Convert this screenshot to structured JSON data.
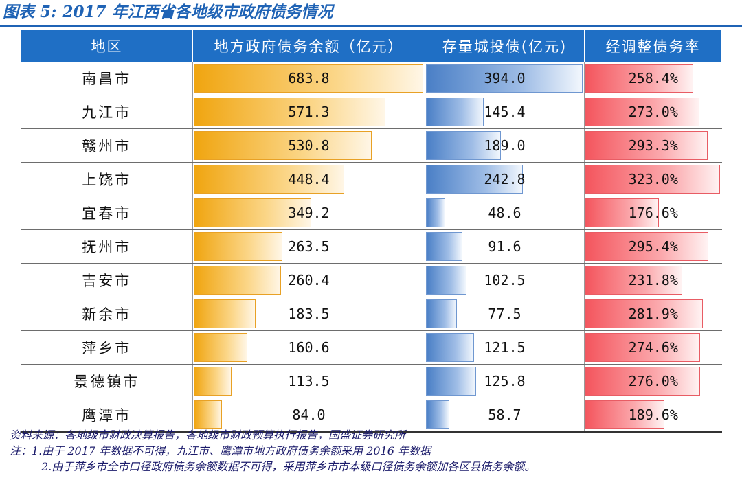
{
  "figure": {
    "title": "图表 5: 2017 年江西省各地级市政府债务情况",
    "source": "资料来源：各地级市财政决算报告，各地级市财政预算执行报告，国盛证券研究所",
    "note_1": "注：1.由于 2017 年数据不可得，九江市、鹰潭市地方政府债务余额采用 2016 年数据",
    "note_2": "2.由于萍乡市全市口径政府债务余额数据不可得，采用萍乡市市本级口径债务余额加各区县债务余额。"
  },
  "chart_data": {
    "type": "table",
    "title": "图表 5: 2017 年江西省各地级市政府债务情况",
    "columns": [
      "地区",
      "地方政府债务余额（亿元）",
      "存量城投债(亿元)",
      "经调整债务率"
    ],
    "rows": [
      {
        "region": "南昌市",
        "local_debt": "683.8",
        "chengtou_bond": "394.0",
        "adjusted_rate": "258.4%"
      },
      {
        "region": "九江市",
        "local_debt": "571.3",
        "chengtou_bond": "145.4",
        "adjusted_rate": "273.0%"
      },
      {
        "region": "赣州市",
        "local_debt": "530.8",
        "chengtou_bond": "189.0",
        "adjusted_rate": "293.3%"
      },
      {
        "region": "上饶市",
        "local_debt": "448.4",
        "chengtou_bond": "242.8",
        "adjusted_rate": "323.0%"
      },
      {
        "region": "宜春市",
        "local_debt": "349.2",
        "chengtou_bond": "48.6",
        "adjusted_rate": "176.6%"
      },
      {
        "region": "抚州市",
        "local_debt": "263.5",
        "chengtou_bond": "91.6",
        "adjusted_rate": "295.4%"
      },
      {
        "region": "吉安市",
        "local_debt": "260.4",
        "chengtou_bond": "102.5",
        "adjusted_rate": "231.8%"
      },
      {
        "region": "新余市",
        "local_debt": "183.5",
        "chengtou_bond": "77.5",
        "adjusted_rate": "281.9%"
      },
      {
        "region": "萍乡市",
        "local_debt": "160.6",
        "chengtou_bond": "121.5",
        "adjusted_rate": "274.6%"
      },
      {
        "region": "景德镇市",
        "local_debt": "113.5",
        "chengtou_bond": "125.8",
        "adjusted_rate": "276.0%"
      },
      {
        "region": "鹰潭市",
        "local_debt": "84.0",
        "chengtou_bond": "58.7",
        "adjusted_rate": "189.6%"
      }
    ],
    "bar_scale_max": {
      "local_debt": 683.8,
      "chengtou_bond": 394.0,
      "adjusted_rate": 323.0
    },
    "bar_colors": {
      "local_debt": "#f0a510",
      "chengtou_bond": "#4a7fc6",
      "adjusted_rate": "#f4565e"
    },
    "header_color": "#1f6fc5"
  }
}
